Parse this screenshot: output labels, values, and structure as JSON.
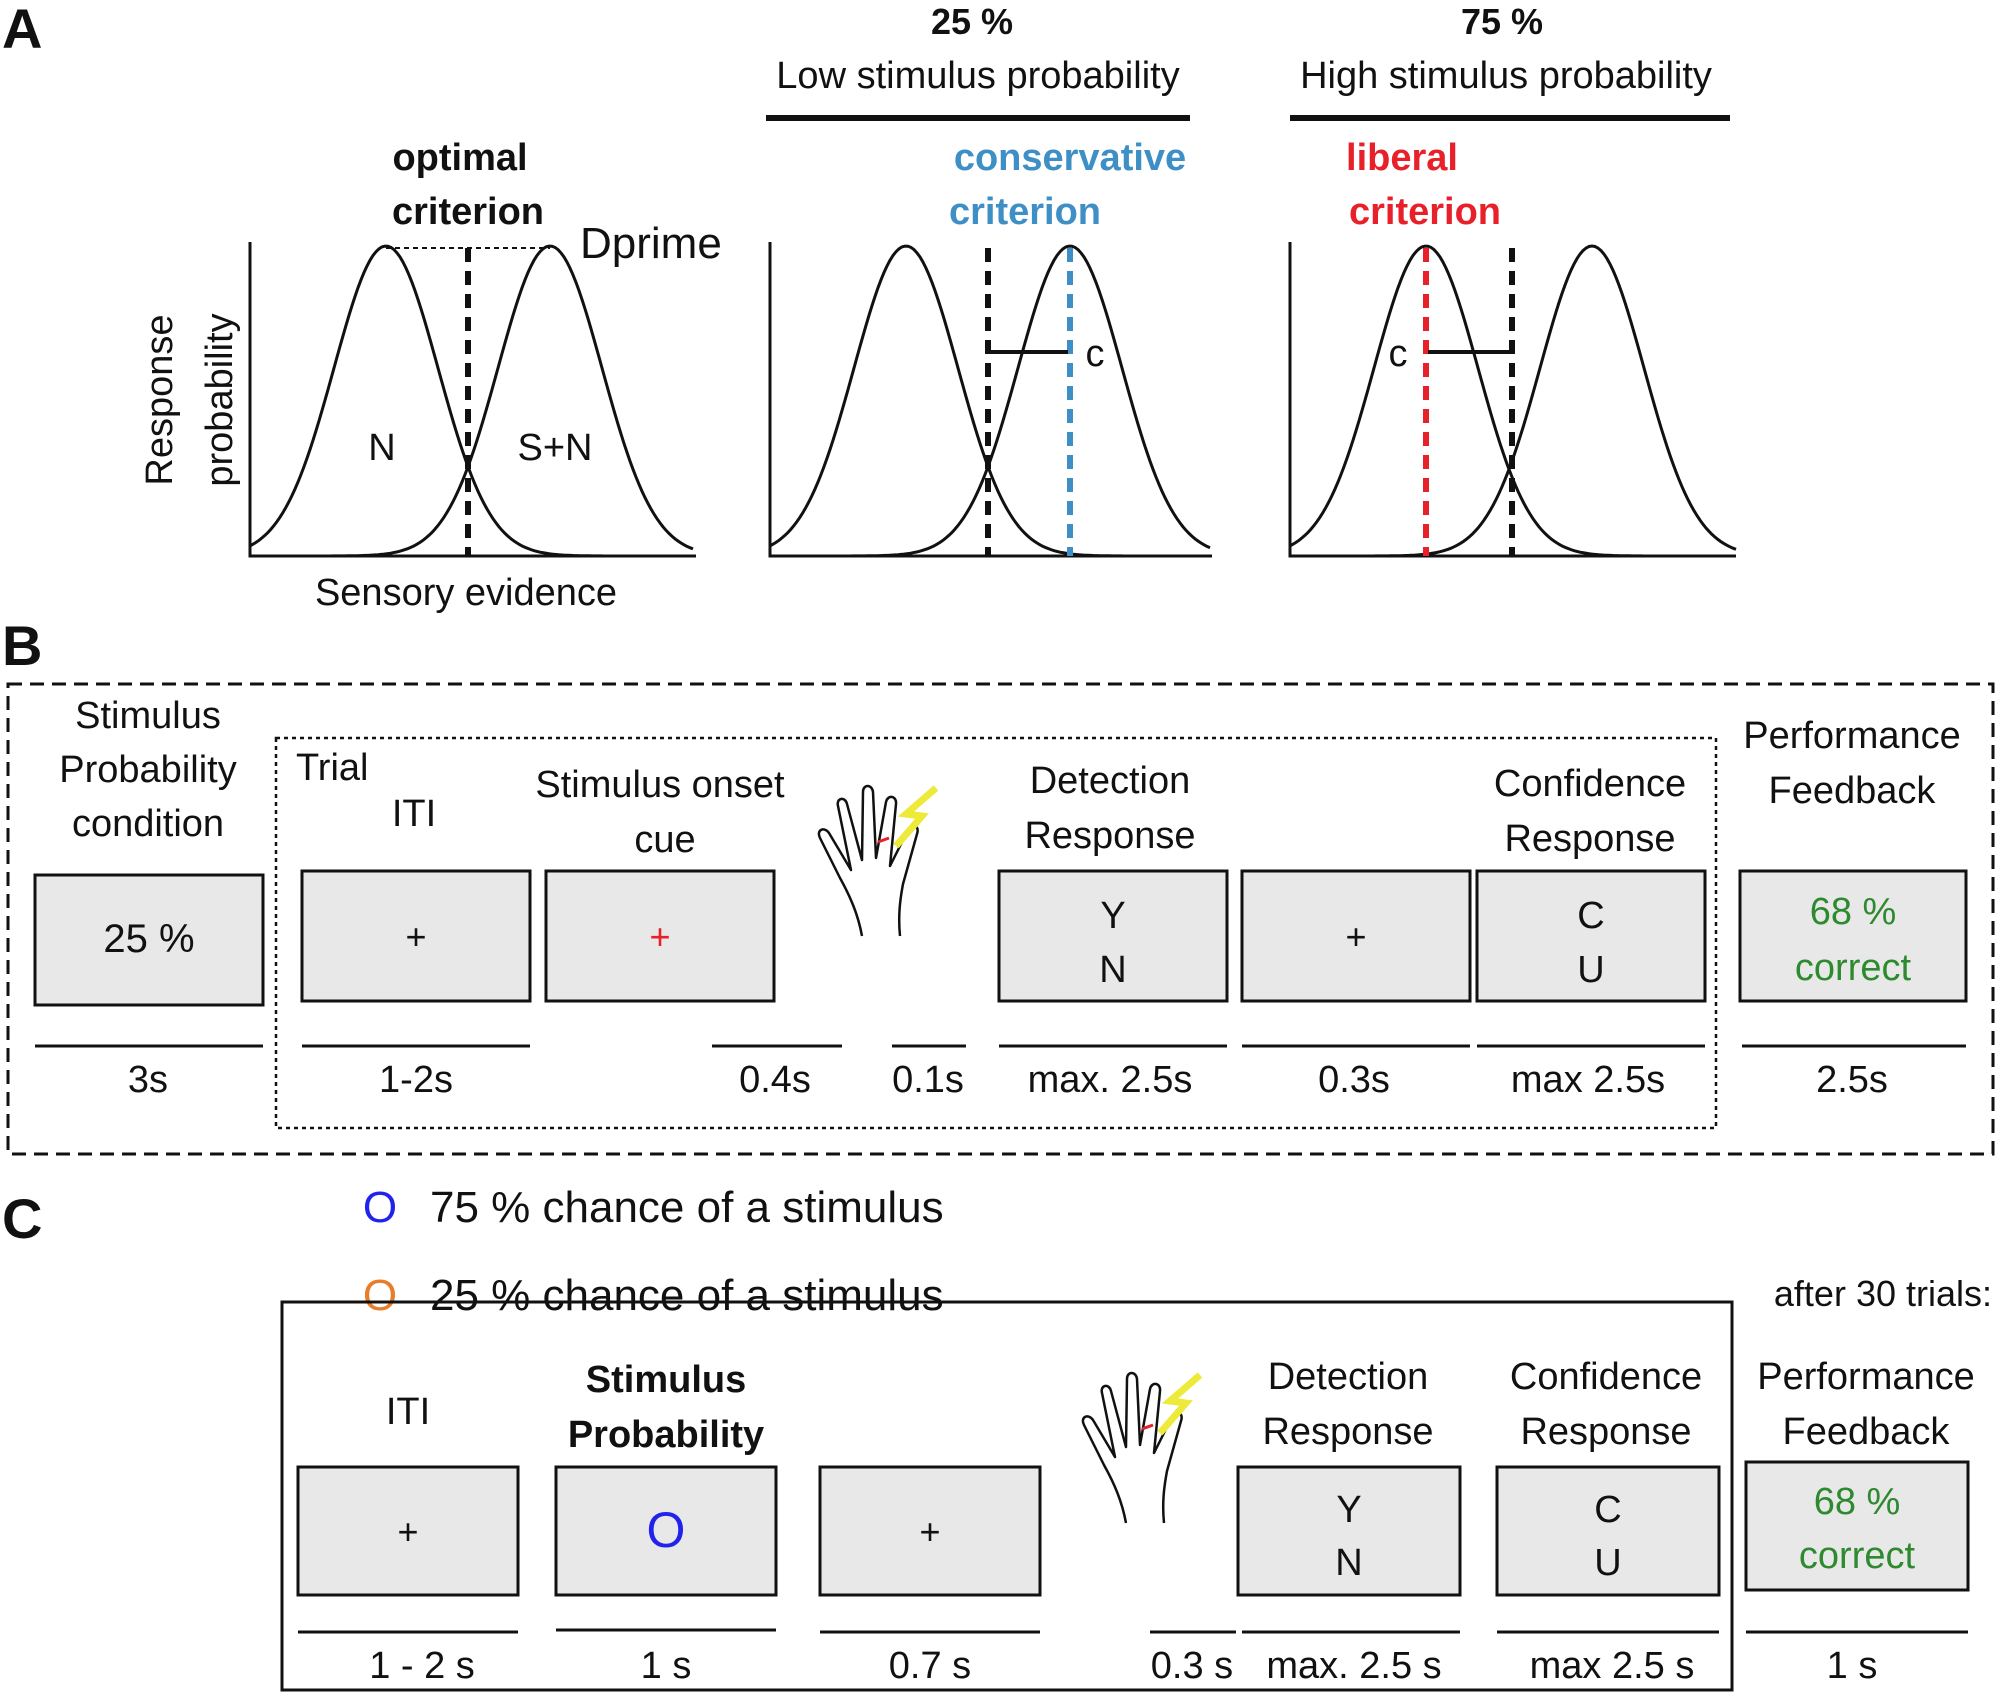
{
  "colors": {
    "blue": "#3d8fc6",
    "red": "#e8202a",
    "green": "#2e8a2e",
    "circle_blue": "#2222ee",
    "circle_orange": "#e87d2a",
    "bolt": "#eeea3a",
    "box_fill": "#e8e8e8"
  },
  "panel_a": {
    "label": "A",
    "plot1": {
      "title1": "optimal",
      "title2": "criterion",
      "dprime": "Dprime",
      "ylabel1": "Response",
      "ylabel2": "probability",
      "xlabel": "Sensory evidence",
      "noise_label": "N",
      "signal_label": "S+N"
    },
    "plot2": {
      "pct": "25 %",
      "header": "Low stimulus probability",
      "title1": "conservative",
      "title2": "criterion",
      "c_label": "c"
    },
    "plot3": {
      "pct": "75 %",
      "header": "High stimulus probability",
      "title1": "liberal",
      "title2": "criterion",
      "c_label": "c"
    }
  },
  "panel_b": {
    "label": "B",
    "condition_label": [
      "Stimulus",
      "Probability",
      "condition"
    ],
    "trial_label": "Trial",
    "iti_label": "ITI",
    "cue_label": [
      "Stimulus onset",
      "cue"
    ],
    "detection_label": [
      "Detection",
      "Response"
    ],
    "confidence_label": [
      "Confidence",
      "Response"
    ],
    "feedback_label": [
      "Performance",
      "Feedback"
    ],
    "boxes": {
      "condition": "25 %",
      "iti": "+",
      "cue": "+",
      "detection": [
        "Y",
        "N"
      ],
      "fixation": "+",
      "confidence": [
        "C",
        "U"
      ],
      "feedback": [
        "68 %",
        "correct"
      ]
    },
    "timings": [
      "3s",
      "1-2s",
      "0.4s",
      "0.1s",
      "max. 2.5s",
      "0.3s",
      "max 2.5s",
      "2.5s"
    ]
  },
  "panel_c": {
    "label": "C",
    "legend": [
      {
        "symbol": "O",
        "text": "75 % chance of a stimulus"
      },
      {
        "symbol": "O",
        "text": "25 % chance of a stimulus"
      }
    ],
    "after_trials": "after 30 trials:",
    "iti_label": "ITI",
    "prob_label": [
      "Stimulus",
      "Probability"
    ],
    "detection_label": [
      "Detection",
      "Response"
    ],
    "confidence_label": [
      "Confidence",
      "Response"
    ],
    "feedback_label": [
      "Performance",
      "Feedback"
    ],
    "boxes": {
      "iti": "+",
      "prob": "O",
      "fixation": "+",
      "detection": [
        "Y",
        "N"
      ],
      "confidence": [
        "C",
        "U"
      ],
      "feedback": [
        "68 %",
        "correct"
      ]
    },
    "timings": [
      "1 - 2 s",
      "1 s",
      "0.7 s",
      "0.3 s",
      "max. 2.5 s",
      "max 2.5 s",
      "1 s"
    ]
  }
}
